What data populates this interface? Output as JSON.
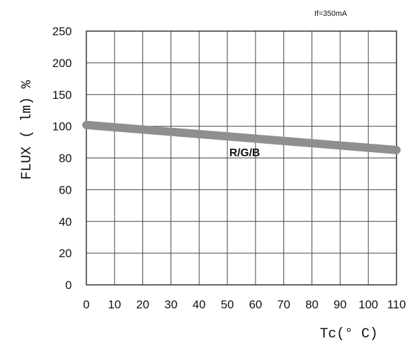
{
  "chart_data": {
    "type": "line",
    "title": "",
    "annotation": "If=350mA",
    "xlabel": "Tc(° C)",
    "ylabel": "FLUX ( lm) %",
    "xlim": [
      0,
      110
    ],
    "ylim": [
      0,
      250
    ],
    "x_ticks": [
      0,
      10,
      20,
      30,
      40,
      50,
      60,
      70,
      80,
      90,
      100,
      110
    ],
    "y_ticks": [
      0,
      20,
      40,
      60,
      80,
      100,
      150,
      200,
      250
    ],
    "grid": true,
    "series": [
      {
        "name": "R/G/B",
        "x": [
          0,
          110
        ],
        "y": [
          102,
          85
        ],
        "color": "#8f8f8f"
      }
    ]
  }
}
